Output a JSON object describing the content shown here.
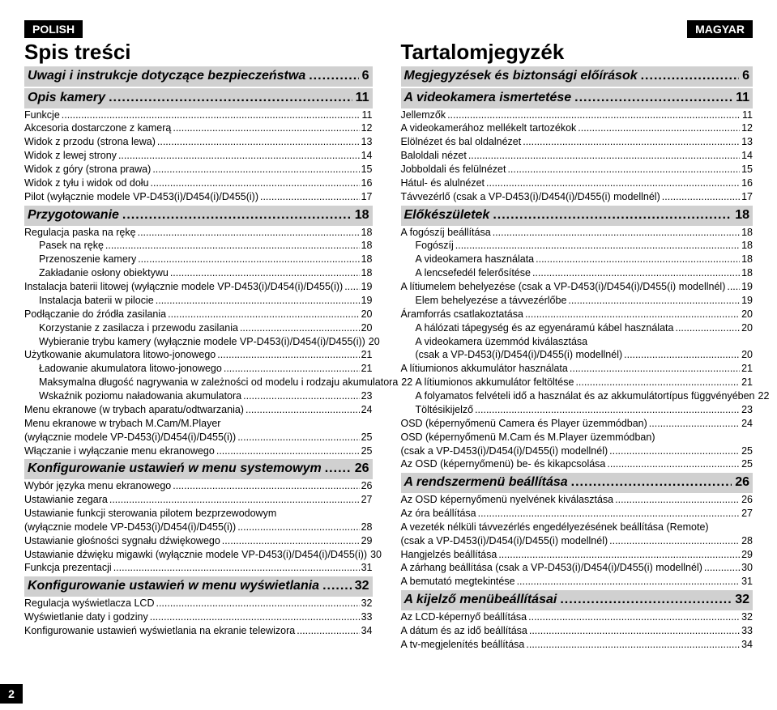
{
  "page_number": "2",
  "left": {
    "lang": "POLISH",
    "title": "Spis treści",
    "sections": [
      {
        "type": "sh",
        "title": "Uwagi i instrukcje dotyczące bezpieczeństwa",
        "page": "6"
      },
      {
        "type": "sh",
        "title": "Opis kamery",
        "page": "11"
      },
      {
        "type": "l",
        "indent": 0,
        "title": "Funkcje",
        "page": "11"
      },
      {
        "type": "l",
        "indent": 0,
        "title": "Akcesoria dostarczone z kamerą",
        "page": "12"
      },
      {
        "type": "l",
        "indent": 0,
        "title": "Widok z przodu (strona lewa)",
        "page": "13"
      },
      {
        "type": "l",
        "indent": 0,
        "title": "Widok z lewej strony",
        "page": "14"
      },
      {
        "type": "l",
        "indent": 0,
        "title": "Widok z góry (strona prawa)",
        "page": "15"
      },
      {
        "type": "l",
        "indent": 0,
        "title": "Widok z tyłu i widok od dołu",
        "page": "16"
      },
      {
        "type": "l",
        "indent": 0,
        "title": "Pilot (wyłącznie modele VP-D453(i)/D454(i)/D455(i))",
        "page": "17"
      },
      {
        "type": "sh",
        "title": "Przygotowanie",
        "page": "18"
      },
      {
        "type": "l",
        "indent": 0,
        "title": "Regulacja paska na rękę",
        "page": "18"
      },
      {
        "type": "l",
        "indent": 1,
        "title": "Pasek na rękę",
        "page": "18"
      },
      {
        "type": "l",
        "indent": 1,
        "title": "Przenoszenie kamery",
        "page": "18"
      },
      {
        "type": "l",
        "indent": 1,
        "title": "Zakładanie osłony obiektywu",
        "page": "18"
      },
      {
        "type": "l",
        "indent": 0,
        "title": "Instalacja baterii litowej (wyłącznie modele VP-D453(i)/D454(i)/D455(i))",
        "page": "19"
      },
      {
        "type": "l",
        "indent": 1,
        "title": "Instalacja baterii w pilocie",
        "page": "19"
      },
      {
        "type": "l",
        "indent": 0,
        "title": "Podłączanie do źródła zasilania",
        "page": "20"
      },
      {
        "type": "l",
        "indent": 1,
        "title": "Korzystanie z zasilacza i przewodu zasilania",
        "page": "20"
      },
      {
        "type": "l",
        "indent": 1,
        "title": "Wybieranie trybu kamery (wyłącznie modele VP-D453(i)/D454(i)/D455(i))",
        "page": "20"
      },
      {
        "type": "l",
        "indent": 0,
        "title": "Użytkowanie akumulatora litowo-jonowego",
        "page": "21"
      },
      {
        "type": "l",
        "indent": 1,
        "title": "Ładowanie akumulatora litowo-jonowego",
        "page": "21"
      },
      {
        "type": "l",
        "indent": 1,
        "title": "Maksymalna długość nagrywania w zależności od modelu i rodzaju akumulatora",
        "page": "22"
      },
      {
        "type": "l",
        "indent": 1,
        "title": "Wskaźnik poziomu naładowania akumulatora",
        "page": "23"
      },
      {
        "type": "l",
        "indent": 0,
        "title": "Menu ekranowe (w trybach aparatu/odtwarzania)",
        "page": "24"
      },
      {
        "type": "l",
        "indent": 0,
        "title": "Menu ekranowe w trybach M.Cam/M.Player",
        "page": "",
        "nodots": true
      },
      {
        "type": "l",
        "indent": 0,
        "title": "(wyłącznie modele VP-D453(i)/D454(i)/D455(i))",
        "page": "25"
      },
      {
        "type": "l",
        "indent": 0,
        "title": "Włączanie i wyłączanie menu ekranowego",
        "page": "25"
      },
      {
        "type": "sh",
        "title": "Konfigurowanie ustawień w menu systemowym",
        "page": "26"
      },
      {
        "type": "l",
        "indent": 0,
        "title": "Wybór języka menu ekranowego",
        "page": "26"
      },
      {
        "type": "l",
        "indent": 0,
        "title": "Ustawianie zegara",
        "page": "27"
      },
      {
        "type": "l",
        "indent": 0,
        "title": "Ustawianie funkcji sterowania pilotem bezprzewodowym",
        "page": "",
        "nodots": true
      },
      {
        "type": "l",
        "indent": 0,
        "title": "(wyłącznie modele VP-D453(i)/D454(i)/D455(i))",
        "page": "28"
      },
      {
        "type": "l",
        "indent": 0,
        "title": "Ustawianie głośności sygnału dźwiękowego",
        "page": "29"
      },
      {
        "type": "l",
        "indent": 0,
        "title": "Ustawianie dźwięku migawki (wyłącznie modele VP-D453(i)/D454(i)/D455(i))",
        "page": "30"
      },
      {
        "type": "l",
        "indent": 0,
        "title": "Funkcja prezentacji",
        "page": "31"
      },
      {
        "type": "sh",
        "title": "Konfigurowanie ustawień w menu wyświetlania",
        "page": "32"
      },
      {
        "type": "l",
        "indent": 0,
        "title": "Regulacja wyświetlacza LCD",
        "page": "32"
      },
      {
        "type": "l",
        "indent": 0,
        "title": "Wyświetlanie daty i godziny",
        "page": "33"
      },
      {
        "type": "l",
        "indent": 0,
        "title": "Konfigurowanie ustawień wyświetlania na ekranie telewizora",
        "page": "34"
      }
    ]
  },
  "right": {
    "lang": "MAGYAR",
    "title": "Tartalomjegyzék",
    "sections": [
      {
        "type": "sh",
        "title": "Megjegyzések és biztonsági előírások",
        "page": "6"
      },
      {
        "type": "sh",
        "title": "A videokamera ismertetése",
        "page": "11"
      },
      {
        "type": "l",
        "indent": 0,
        "title": "Jellemzők",
        "page": "11"
      },
      {
        "type": "l",
        "indent": 0,
        "title": "A videokamerához mellékelt tartozékok",
        "page": "12"
      },
      {
        "type": "l",
        "indent": 0,
        "title": "Elölnézet és bal oldalnézet",
        "page": "13"
      },
      {
        "type": "l",
        "indent": 0,
        "title": "Baloldali nézet",
        "page": "14"
      },
      {
        "type": "l",
        "indent": 0,
        "title": "Jobboldali és felülnézet",
        "page": "15"
      },
      {
        "type": "l",
        "indent": 0,
        "title": "Hátul- és alulnézet",
        "page": "16"
      },
      {
        "type": "l",
        "indent": 0,
        "title": "Távvezérlő (csak a VP-D453(i)/D454(i)/D455(i) modellnél)",
        "page": "17"
      },
      {
        "type": "sh",
        "title": "Előkészületek",
        "page": "18"
      },
      {
        "type": "l",
        "indent": 0,
        "title": "A fogószíj beállítása",
        "page": "18"
      },
      {
        "type": "l",
        "indent": 1,
        "title": "Fogószíj",
        "page": "18"
      },
      {
        "type": "l",
        "indent": 1,
        "title": "A videokamera használata",
        "page": "18"
      },
      {
        "type": "l",
        "indent": 1,
        "title": "A lencsefedél felerősítése",
        "page": "18"
      },
      {
        "type": "l",
        "indent": 0,
        "title": "A lítiumelem behelyezése (csak a VP-D453(i)/D454(i)/D455(i) modellnél)",
        "page": "19"
      },
      {
        "type": "l",
        "indent": 1,
        "title": "Elem behelyezése a távvezérlőbe",
        "page": "19"
      },
      {
        "type": "l",
        "indent": 0,
        "title": "Áramforrás csatlakoztatása",
        "page": "20"
      },
      {
        "type": "l",
        "indent": 1,
        "title": "A hálózati tápegység és az egyenáramú kábel használata",
        "page": "20"
      },
      {
        "type": "l",
        "indent": 1,
        "title": "A videokamera üzemmód kiválasztása",
        "page": "",
        "nodots": true
      },
      {
        "type": "l",
        "indent": 1,
        "title": "(csak a VP-D453(i)/D454(i)/D455(i) modellnél)",
        "page": "20"
      },
      {
        "type": "l",
        "indent": 0,
        "title": "A lítiumionos akkumulátor használata",
        "page": "21"
      },
      {
        "type": "l",
        "indent": 1,
        "title": "A lítiumionos akkumulátor feltöltése",
        "page": "21"
      },
      {
        "type": "l",
        "indent": 1,
        "title": "A folyamatos felvételi idő a használat és az akkumulátortípus függvényében",
        "page": "22"
      },
      {
        "type": "l",
        "indent": 1,
        "title": "Töltésikijelző",
        "page": "23"
      },
      {
        "type": "l",
        "indent": 0,
        "title": "OSD (képernyőmenü Camera és Player üzemmódban)",
        "page": "24"
      },
      {
        "type": "l",
        "indent": 0,
        "title": "OSD (képernyőmenü M.Cam és M.Player üzemmódban)",
        "page": "",
        "nodots": true
      },
      {
        "type": "l",
        "indent": 0,
        "title": "(csak a VP-D453(i)/D454(i)/D455(i) modellnél)",
        "page": "25"
      },
      {
        "type": "l",
        "indent": 0,
        "title": "Az OSD (képernyőmenü) be- és kikapcsolása",
        "page": "25"
      },
      {
        "type": "sh",
        "title": "A rendszermenü beállítása",
        "page": "26"
      },
      {
        "type": "l",
        "indent": 0,
        "title": "Az OSD képernyőmenü nyelvének kiválasztása",
        "page": "26"
      },
      {
        "type": "l",
        "indent": 0,
        "title": "Az óra beállítása",
        "page": "27"
      },
      {
        "type": "l",
        "indent": 0,
        "title": "A vezeték nélküli távvezérlés engedélyezésének beállítása (Remote)",
        "page": "",
        "nodots": true
      },
      {
        "type": "l",
        "indent": 0,
        "title": "(csak a VP-D453(i)/D454(i)/D455(i) modellnél)",
        "page": "28"
      },
      {
        "type": "l",
        "indent": 0,
        "title": "Hangjelzés beállítása",
        "page": "29"
      },
      {
        "type": "l",
        "indent": 0,
        "title": "A zárhang beállítása (csak a VP-D453(i)/D454(i)/D455(i) modellnél)",
        "page": "30"
      },
      {
        "type": "l",
        "indent": 0,
        "title": "A bemutató megtekintése",
        "page": "31"
      },
      {
        "type": "sh",
        "title": "A kijelző menübeállításai",
        "page": "32"
      },
      {
        "type": "l",
        "indent": 0,
        "title": "Az LCD-képernyő beállítása",
        "page": "32"
      },
      {
        "type": "l",
        "indent": 0,
        "title": "A dátum és az idő beállítása",
        "page": "33"
      },
      {
        "type": "l",
        "indent": 0,
        "title": "A tv-megjelenítés beállítása",
        "page": "34"
      }
    ]
  }
}
